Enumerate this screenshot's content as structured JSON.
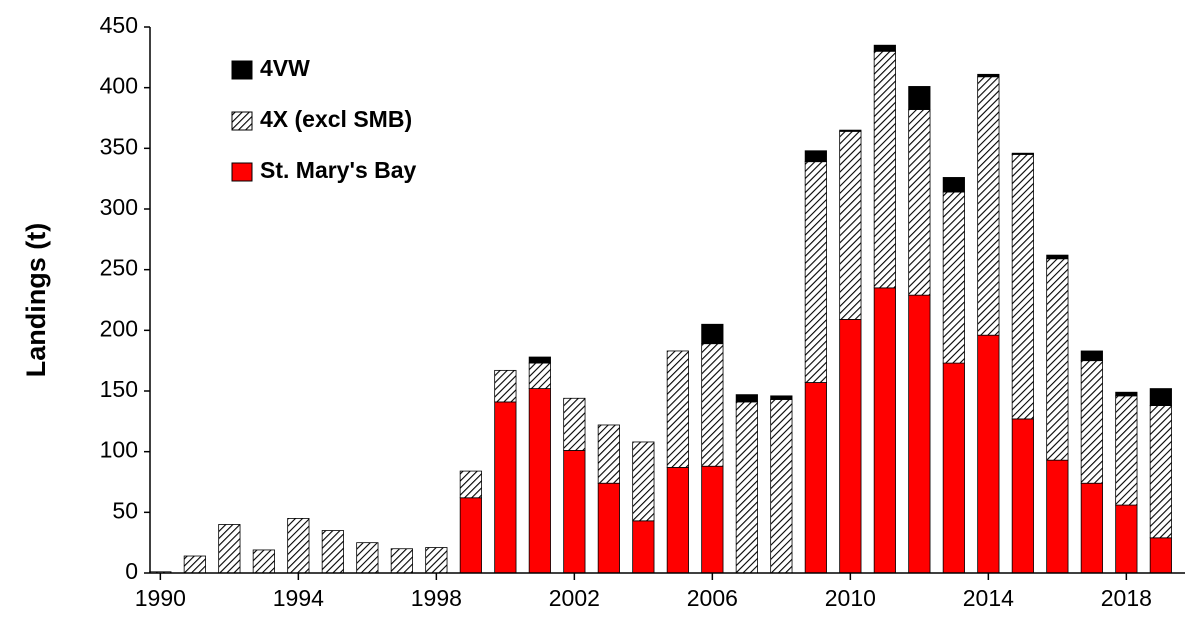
{
  "chart_data": {
    "type": "stacked-bar",
    "y_label": "Landings (t)",
    "x": [
      1990,
      1991,
      1992,
      1993,
      1994,
      1995,
      1996,
      1997,
      1998,
      1999,
      2000,
      2001,
      2002,
      2003,
      2004,
      2005,
      2006,
      2007,
      2008,
      2009,
      2010,
      2011,
      2012,
      2013,
      2014,
      2015,
      2016,
      2017,
      2018,
      2019
    ],
    "series": [
      {
        "name": "St. Mary's Bay",
        "color": "#ff0000",
        "values": [
          0,
          0,
          0,
          0,
          0,
          0,
          0,
          0,
          0,
          62,
          141,
          152,
          101,
          74,
          43,
          87,
          88,
          0,
          0,
          157,
          209,
          235,
          229,
          173,
          196,
          127,
          93,
          74,
          56,
          29
        ]
      },
      {
        "name": "4X (excl SMB)",
        "color": "#000000",
        "pattern": "hatch",
        "values": [
          1,
          14,
          40,
          19,
          45,
          35,
          25,
          20,
          21,
          22,
          26,
          21,
          43,
          48,
          65,
          96,
          101,
          141,
          143,
          182,
          155,
          195,
          153,
          141,
          213,
          218,
          166,
          101,
          90,
          109
        ]
      },
      {
        "name": "4VW",
        "color": "#000000",
        "values": [
          0,
          0,
          0,
          0,
          0,
          0,
          0,
          0,
          0,
          0,
          0,
          5,
          0,
          0,
          0,
          0,
          16,
          6,
          3,
          9,
          1,
          5,
          19,
          12,
          2,
          1,
          3,
          8,
          3,
          14
        ]
      }
    ],
    "xlim": [
      1989.7,
      2019.7
    ],
    "xticks": [
      1990,
      1994,
      1998,
      2002,
      2006,
      2010,
      2014,
      2018
    ],
    "ylim": [
      0,
      450
    ],
    "yticks": [
      0,
      50,
      100,
      150,
      200,
      250,
      300,
      350,
      400,
      450
    ],
    "legend": "top-left"
  }
}
